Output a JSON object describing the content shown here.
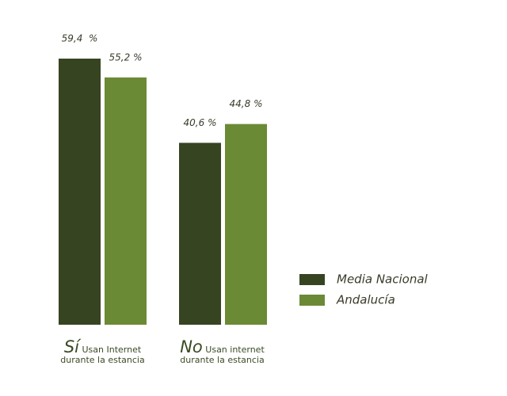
{
  "chart_data": {
    "type": "bar",
    "categories": [
      "Sí",
      "No"
    ],
    "category_descriptions": [
      "Usan Internet durante la estancia",
      "Usan internet durante la estancia"
    ],
    "series": [
      {
        "name": "Media Nacional",
        "color": "#374422",
        "values": [
          59.4,
          40.6
        ],
        "value_labels": [
          "59,4  %",
          "40,6 %"
        ]
      },
      {
        "name": "Andalucía",
        "color": "#6b8a35",
        "values": [
          55.2,
          44.8
        ],
        "value_labels": [
          "55,2 %",
          "44,8 %"
        ]
      }
    ],
    "legend": "right"
  }
}
